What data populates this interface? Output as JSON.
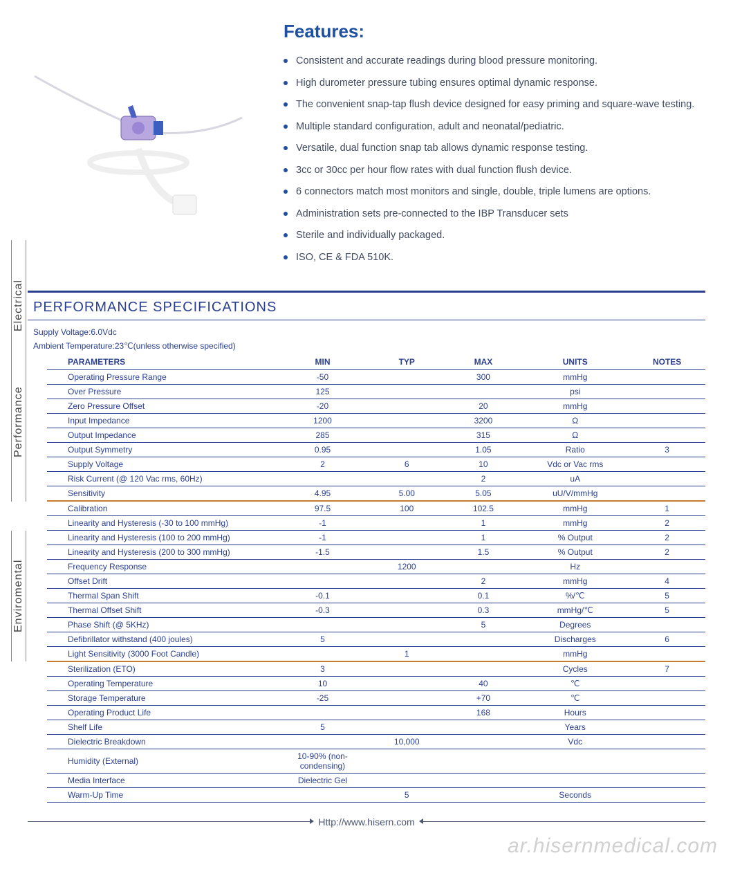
{
  "colors": {
    "brand": "#1f4fa0",
    "table": "#2a3f8f",
    "section_divider": "#c47a2f",
    "text_body": "#404a60",
    "watermark": "rgba(120,120,120,0.35)"
  },
  "features": {
    "title": "Features:",
    "items": [
      "Consistent and accurate readings during blood pressure monitoring.",
      "High durometer pressure tubing ensures optimal dynamic response.",
      "The convenient snap-tap flush device designed for easy priming and square-wave testing.",
      "Multiple standard configuration, adult and neonatal/pediatric.",
      "Versatile, dual function snap tab allows dynamic response testing.",
      "3cc or 30cc per hour flow rates with dual function flush device.",
      "6 connectors match most monitors and single, double, triple lumens are options.",
      "Administration sets pre-connected to the IBP Transducer sets",
      "Sterile and individually packaged.",
      "ISO, CE & FDA 510K."
    ]
  },
  "spec": {
    "title": "PERFORMANCE SPECIFICATIONS",
    "meta_lines": [
      "Supply Voltage:6.0Vdc",
      "Ambient Temperature:23℃(unless otherwise specified)"
    ],
    "columns": [
      "PARAMETERS",
      "MIN",
      "TYP",
      "MAX",
      "UNITS",
      "NOTES"
    ],
    "col_widths": [
      "300px",
      "120px",
      "100px",
      "100px",
      "140px",
      "100px"
    ],
    "sections": [
      {
        "label": "Electrical",
        "rows": [
          {
            "param": "Operating Pressure Range",
            "min": "-50",
            "typ": "",
            "max": "300",
            "units": "mmHg",
            "notes": ""
          },
          {
            "param": "Over  Pressure",
            "min": "125",
            "typ": "",
            "max": "",
            "units": "psi",
            "notes": ""
          },
          {
            "param": "Zero Pressure Offset",
            "min": "-20",
            "typ": "",
            "max": "20",
            "units": "mmHg",
            "notes": ""
          },
          {
            "param": "Input Impedance",
            "min": "1200",
            "typ": "",
            "max": "3200",
            "units": "Ω",
            "notes": ""
          },
          {
            "param": "Output Impedance",
            "min": "285",
            "typ": "",
            "max": "315",
            "units": "Ω",
            "notes": ""
          },
          {
            "param": "Output Symmetry",
            "min": "0.95",
            "typ": "",
            "max": "1.05",
            "units": "Ratio",
            "notes": "3"
          },
          {
            "param": "Supply Voltage",
            "min": "2",
            "typ": "6",
            "max": "10",
            "units": "Vdc or Vac rms",
            "notes": ""
          },
          {
            "param": "Risk Current (@ 120 Vac rms, 60Hz)",
            "min": "",
            "typ": "",
            "max": "2",
            "units": "uA",
            "notes": ""
          },
          {
            "param": "Sensitivity",
            "min": "4.95",
            "typ": "5.00",
            "max": "5.05",
            "units": "uU/V/mmHg",
            "notes": ""
          }
        ]
      },
      {
        "label": "Performance",
        "rows": [
          {
            "param": "Calibration",
            "min": "97.5",
            "typ": "100",
            "max": "102.5",
            "units": "mmHg",
            "notes": "1"
          },
          {
            "param": "Linearity and Hysteresis (-30 to 100 mmHg)",
            "min": "-1",
            "typ": "",
            "max": "1",
            "units": "mmHg",
            "notes": "2"
          },
          {
            "param": "Linearity and Hysteresis (100 to 200 mmHg)",
            "min": "-1",
            "typ": "",
            "max": "1",
            "units": "% Output",
            "notes": "2"
          },
          {
            "param": "Linearity and Hysteresis (200 to 300 mmHg)",
            "min": "-1.5",
            "typ": "",
            "max": "1.5",
            "units": "% Output",
            "notes": "2"
          },
          {
            "param": "Frequency Response",
            "min": "",
            "typ": "1200",
            "max": "",
            "units": "Hz",
            "notes": ""
          },
          {
            "param": "Offset Drift",
            "min": "",
            "typ": "",
            "max": "2",
            "units": "mmHg",
            "notes": "4"
          },
          {
            "param": "Thermal Span Shift",
            "min": "-0.1",
            "typ": "",
            "max": "0.1",
            "units": "%/℃",
            "notes": "5"
          },
          {
            "param": "Thermal Offset Shift",
            "min": "-0.3",
            "typ": "",
            "max": "0.3",
            "units": "mmHg/℃",
            "notes": "5"
          },
          {
            "param": "Phase Shift (@ 5KHz)",
            "min": "",
            "typ": "",
            "max": "5",
            "units": "Degrees",
            "notes": ""
          },
          {
            "param": "Defibrillator withstand (400 joules)",
            "min": "5",
            "typ": "",
            "max": "",
            "units": "Discharges",
            "notes": "6"
          },
          {
            "param": "Light Sensitivity (3000 Foot Candle)",
            "min": "",
            "typ": "1",
            "max": "",
            "units": "mmHg",
            "notes": ""
          }
        ]
      },
      {
        "label": "Enviromental",
        "rows": [
          {
            "param": "Sterilization (ETO)",
            "min": "3",
            "typ": "",
            "max": "",
            "units": "Cycles",
            "notes": "7"
          },
          {
            "param": "Operating Temperature",
            "min": "10",
            "typ": "",
            "max": "40",
            "units": "℃",
            "notes": ""
          },
          {
            "param": "Storage Temperature",
            "min": "-25",
            "typ": "",
            "max": "+70",
            "units": "℃",
            "notes": ""
          },
          {
            "param": "Operating Product Life",
            "min": "",
            "typ": "",
            "max": "168",
            "units": "Hours",
            "notes": ""
          },
          {
            "param": "Shelf Life",
            "min": "5",
            "typ": "",
            "max": "",
            "units": "Years",
            "notes": ""
          },
          {
            "param": "Dielectric Breakdown",
            "min": "",
            "typ": "10,000",
            "max": "",
            "units": "Vdc",
            "notes": ""
          },
          {
            "param": "Humidity (External)",
            "min": "10-90% (non-condensing)",
            "typ": "",
            "max": "",
            "units": "",
            "notes": ""
          },
          {
            "param": "Media Interface",
            "min": "Dielectric Gel",
            "typ": "",
            "max": "",
            "units": "",
            "notes": ""
          },
          {
            "param": "Warm-Up Time",
            "min": "",
            "typ": "5",
            "max": "",
            "units": "Seconds",
            "notes": ""
          }
        ]
      }
    ]
  },
  "footer": {
    "url": "Http://www.hisern.com"
  },
  "watermark": "ar.hisernmedical.com"
}
